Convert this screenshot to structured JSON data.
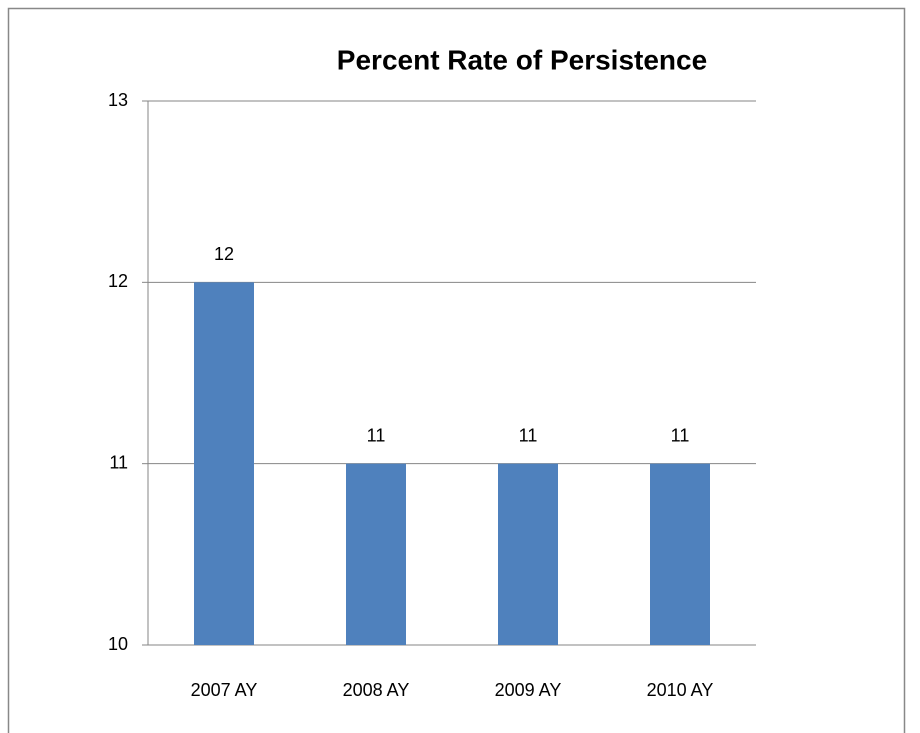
{
  "chart_data": {
    "type": "bar",
    "title": "Percent Rate of Persistence",
    "categories": [
      "2007 AY",
      "2008 AY",
      "2009 AY",
      "2010 AY"
    ],
    "values": [
      12,
      11,
      11,
      11
    ],
    "color": "#4f81bd",
    "ylim": [
      10,
      13
    ],
    "yticks": [
      10,
      11,
      12,
      13
    ],
    "grid": true
  }
}
